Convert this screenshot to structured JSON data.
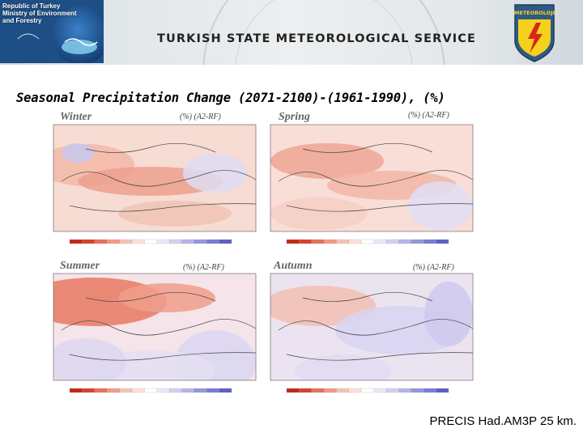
{
  "header": {
    "gov_text": "Republic of Turkey\nMinistry of Environment\nand Forestry",
    "service_title": "TURKISH STATE METEOROLOGICAL SERVICE",
    "logo_text": "METEOROLOJI"
  },
  "title": "Seasonal Precipitation Change (2071-2100)-(1961-1990), (%)",
  "panels": [
    {
      "season": "Winter",
      "units": "(%)  (A2-RF)"
    },
    {
      "season": "Spring",
      "units": "(%)  (A2-RF)"
    },
    {
      "season": "Summer",
      "units": "(%)  (A2-RF)"
    },
    {
      "season": "Autumn",
      "units": "(%)  (A2-RF)"
    }
  ],
  "credit": "PRECIS Had.AM3P 25 km.",
  "colors": {
    "decrease_strong": "#d9402c",
    "decrease_light": "#fbd9cf",
    "increase_light": "#dcdcf4",
    "increase_strong": "#6a6ad0"
  }
}
